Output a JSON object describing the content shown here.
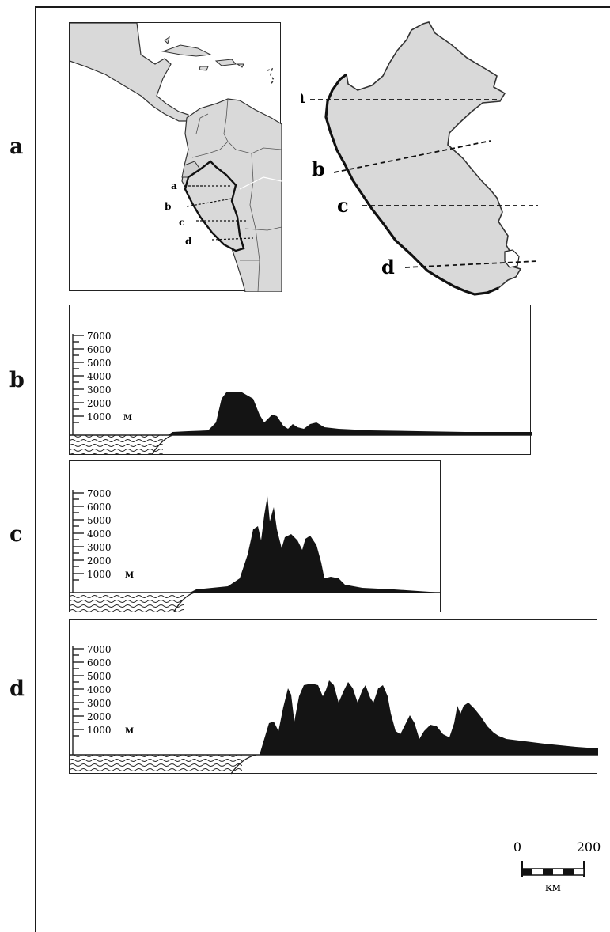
{
  "panels": {
    "a": {
      "letter": "a"
    },
    "b": {
      "letter": "b"
    },
    "c": {
      "letter": "c"
    },
    "d": {
      "letter": "d"
    }
  },
  "inset_map": {
    "line_labels": [
      "a",
      "b",
      "c",
      "d"
    ]
  },
  "peru_map": {
    "line_labels": [
      "a",
      "b",
      "c",
      "d"
    ]
  },
  "profiles": {
    "elevation_ticks": [
      "7000",
      "6000",
      "5000",
      "4000",
      "3000",
      "2000",
      "1000"
    ],
    "unit": "M"
  },
  "scale_bar": {
    "start": "0",
    "end": "200",
    "unit": "KM"
  },
  "colors": {
    "land": "#d9d9d9",
    "relief": "#141414",
    "border": "#222222"
  }
}
